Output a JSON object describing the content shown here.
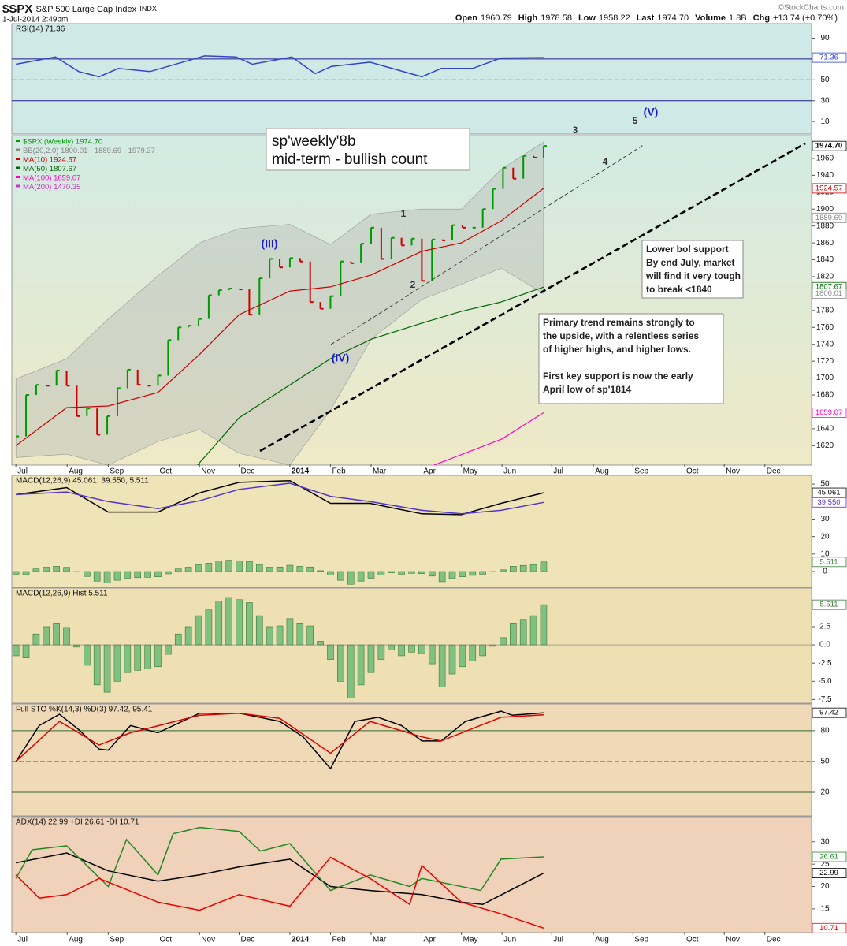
{
  "header": {
    "symbol": "$SPX",
    "name": "S&P 500 Large Cap Index",
    "exchange": "INDX",
    "date": "1-Jul-2014 2:49pm",
    "quote": [
      {
        "label": "Open",
        "value": "1960.79"
      },
      {
        "label": "High",
        "value": "1978.58"
      },
      {
        "label": "Low",
        "value": "1958.22"
      },
      {
        "label": "Last",
        "value": "1974.70"
      },
      {
        "label": "Volume",
        "value": "1.8B"
      },
      {
        "label": "Chg",
        "value": "+13.74 (+0.70%)"
      }
    ],
    "copyright": "©StockCharts.com"
  },
  "chart_data": {
    "type": "multi",
    "xlim": [
      -0.4,
      78.4
    ],
    "xticks": [
      {
        "value": 0,
        "label": "Jul"
      },
      {
        "value": 5.05,
        "label": "Aug"
      },
      {
        "value": 9.1,
        "label": "Sep"
      },
      {
        "value": 14,
        "label": "Oct"
      },
      {
        "value": 18.1,
        "label": "Nov"
      },
      {
        "value": 22,
        "label": "Dec"
      },
      {
        "value": 27,
        "label": "2014"
      },
      {
        "value": 31,
        "label": "Feb"
      },
      {
        "value": 35,
        "label": "Mar"
      },
      {
        "value": 40,
        "label": "Apr"
      },
      {
        "value": 43.9,
        "label": "May"
      },
      {
        "value": 47.9,
        "label": "Jun"
      },
      {
        "value": 52.8,
        "label": "Jul"
      },
      {
        "value": 56.9,
        "label": "Aug"
      },
      {
        "value": 60.8,
        "label": "Sep"
      },
      {
        "value": 65.9,
        "label": "Oct"
      },
      {
        "value": 69.8,
        "label": "Nov"
      },
      {
        "value": 73.8,
        "label": "Dec"
      }
    ],
    "panels": [
      {
        "type": "line",
        "title": "RSI(14) 71.36",
        "ylim": [
          -2,
          104
        ],
        "yticks": [
          90,
          70,
          50,
          30,
          10
        ],
        "levels": [
          70,
          50,
          30
        ],
        "level_color": "#1a1a8c",
        "series": [
          {
            "color": "#3344cc",
            "x": [
              0,
              3.9,
              6.2,
              8.2,
              10.1,
              13.2,
              18.6,
              21.7,
              23.3,
              27.2,
              29.5,
              31.1,
              34.9,
              40,
              41.9,
              45,
              47.8,
              52
            ],
            "values": [
              65,
              72,
              58,
              53,
              61,
              58,
              73,
              72,
              65,
              72,
              56,
              63,
              67,
              53,
              61,
              61,
              71,
              71.36
            ]
          }
        ],
        "tags": [
          {
            "value": 71.36,
            "color": "#3344cc"
          }
        ]
      },
      {
        "type": "price",
        "ylim": [
          1597,
          1987
        ],
        "yticks": [
          1960,
          1940,
          1920,
          1900,
          1880,
          1860,
          1840,
          1820,
          1800,
          1780,
          1760,
          1740,
          1720,
          1700,
          1680,
          1660,
          1640,
          1620
        ],
        "band": {
          "name": "BB(20,2.0) 1800.01 - 1889.69 - 1979.37",
          "color": "#b8bcb8",
          "x": [
            0,
            5,
            9.1,
            14,
            18.1,
            22,
            27,
            31,
            35,
            40,
            43.9,
            47.8,
            52
          ],
          "upper": [
            1699,
            1723,
            1770,
            1821,
            1860,
            1877,
            1882,
            1858,
            1894,
            1900,
            1900,
            1947,
            1979.37
          ],
          "lower": [
            1606,
            1610,
            1597,
            1625,
            1639,
            1611,
            1597,
            1662,
            1746,
            1793,
            1811,
            1830,
            1800.01
          ]
        },
        "series": [
          {
            "name": "$SPX (Weekly) 1974.70",
            "color": "#009900",
            "x": [
              0,
              1,
              2,
              3,
              4,
              5,
              6,
              7,
              8,
              9,
              10,
              11,
              12,
              13,
              14,
              15,
              16,
              17,
              18,
              19,
              20,
              21,
              22,
              23,
              24,
              25,
              26,
              27,
              28,
              29,
              30,
              31,
              32,
              33,
              34,
              35,
              36,
              37,
              38,
              39,
              40,
              41,
              42,
              43,
              44,
              45,
              46,
              47,
              48,
              49,
              50,
              51,
              52
            ],
            "values": [
              1631,
              1680,
              1692,
              1691,
              1709,
              1691,
              1655,
              1664,
              1633,
              1655,
              1688,
              1710,
              1692,
              1691,
              1703,
              1745,
              1760,
              1762,
              1770,
              1798,
              1804,
              1806,
              1805,
              1775,
              1818,
              1841,
              1831,
              1842,
              1838,
              1790,
              1782,
              1797,
              1838,
              1836,
              1859,
              1878,
              1841,
              1866,
              1857,
              1865,
              1815,
              1864,
              1863,
              1881,
              1878,
              1878,
              1900,
              1924,
              1949,
              1936,
              1963,
              1961,
              1974.7
            ]
          },
          {
            "name": "MA(10) 1924.57",
            "color": "#cc0000",
            "x": [
              0,
              5,
              9.1,
              14,
              18.1,
              22,
              27,
              31,
              35,
              40,
              43.9,
              47.8,
              52
            ],
            "values": [
              1620,
              1665,
              1667,
              1683,
              1728,
              1775,
              1803,
              1808,
              1822,
              1850,
              1860,
              1886,
              1924.57
            ]
          },
          {
            "name": "MA(50) 1807.67",
            "color": "#006600",
            "x": [
              17.9,
              22,
              27,
              31,
              35,
              40,
              43.9,
              47.8,
              52
            ],
            "values": [
              1597,
              1653,
              1692,
              1723,
              1746,
              1765,
              1779,
              1790,
              1807.67
            ]
          },
          {
            "name": "MA(100) 1659.07",
            "color": "#ff00cc",
            "x": [
              41.2,
              47.9,
              52
            ],
            "values": [
              1597,
              1628,
              1659.07
            ]
          },
          {
            "name": "MA(200) 1470.35",
            "color": "#cc33cc"
          }
        ],
        "tags": [
          {
            "value": 1974.7,
            "label": "1974.70",
            "color": "#000000"
          },
          {
            "value": 1924.57,
            "color": "#cc0000"
          },
          {
            "value": 1889.69,
            "color": "#888888"
          },
          {
            "value": 1807.67,
            "color": "#006600"
          },
          {
            "value": 1800.01,
            "color": "#888888"
          },
          {
            "value": 1659.07,
            "color": "#ff00cc"
          }
        ],
        "annotations": [
          "(III)",
          "(IV)",
          "(V)",
          "1",
          "2",
          "3",
          "4",
          "5"
        ],
        "title_box": [
          "sp'weekly'8b",
          "mid-term - bullish count"
        ],
        "notes": [
          [
            "Lower bol support",
            "By end July, market",
            "will find it very tough",
            "to break <1840"
          ],
          [
            "Primary trend remains strongly to",
            "the upside, with a relentless series",
            "of higher highs, and higher lows.",
            "",
            "First key support is now the early",
            "April low of sp'1814"
          ]
        ]
      },
      {
        "type": "line",
        "title": "MACD(12,26,9) 45.061, 39.550, 5.511",
        "ylim": [
          -9,
          55
        ],
        "yticks": [
          50,
          40,
          30,
          20,
          10,
          0
        ],
        "hist_from": 3,
        "series": [
          {
            "color": "#000000",
            "x": [
              0,
              5,
              9.1,
              14,
              18.1,
              22,
              27,
              31,
              34.9,
              40,
              43.9,
              47.8,
              52
            ],
            "values": [
              44,
              48,
              34,
              34,
              45,
              51,
              52,
              39,
              39,
              33,
              32.5,
              39,
              45.061
            ]
          },
          {
            "color": "#5533cc",
            "x": [
              0,
              5,
              9.1,
              14,
              18.1,
              22,
              27,
              31,
              34.9,
              40,
              43.9,
              47.8,
              52
            ],
            "values": [
              44,
              45.5,
              40,
              36,
              40.5,
              47,
              50.5,
              43,
              40,
              35,
              33,
              35,
              39.55
            ]
          }
        ],
        "tags": [
          {
            "value": 45.061,
            "color": "#000000"
          },
          {
            "value": 39.55,
            "label": "39.550",
            "color": "#5533cc"
          },
          {
            "value": 5.511,
            "color": "#3a7a3a"
          }
        ]
      },
      {
        "type": "hist",
        "title": "MACD(12,26,9) Hist 5.511",
        "ylim": [
          -8,
          7.8
        ],
        "yticks": [
          2.5,
          {
            "value": 0,
            "label": "0.0"
          },
          -2.5,
          {
            "value": -5,
            "label": "-5.0"
          },
          -7.5
        ],
        "color": "#80c080",
        "values": [
          -1.5,
          -1.8,
          1.5,
          2.5,
          3.0,
          2.4,
          -0.3,
          -2.8,
          -5.5,
          -6.5,
          -5.0,
          -3.8,
          -3.5,
          -3.3,
          -3.0,
          -1.3,
          1.5,
          2.5,
          4.0,
          4.8,
          6.0,
          6.5,
          6.2,
          5.8,
          4.0,
          2.5,
          2.6,
          3.6,
          3.0,
          2.6,
          0.5,
          -2.0,
          -5.0,
          -7.3,
          -5.5,
          -3.8,
          -2.0,
          -0.7,
          -1.5,
          -1.0,
          -1.2,
          -2.6,
          -5.8,
          -4.0,
          -3.0,
          -2.2,
          -1.5,
          -0.2,
          1.0,
          3.0,
          3.5,
          4.0,
          5.511
        ],
        "x": [
          0,
          1,
          2,
          3,
          4,
          5,
          6,
          7,
          8,
          9,
          10,
          11,
          12,
          13,
          14,
          15,
          16,
          17,
          18,
          19,
          20,
          21,
          22,
          23,
          24,
          25,
          26,
          27,
          28,
          29,
          30,
          31,
          32,
          33,
          34,
          35,
          36,
          37,
          38,
          39,
          40,
          41,
          42,
          43,
          44,
          45,
          46,
          47,
          48,
          49,
          50,
          51,
          52
        ],
        "tags": [
          {
            "value": 5.511,
            "color": "#3a7a3a"
          }
        ]
      },
      {
        "type": "line",
        "title": "Full STO %K(14,3) %D(3) 97.42, 95.41",
        "ylim": [
          -3,
          106
        ],
        "yticks": [
          80,
          50,
          20
        ],
        "levels": [
          80,
          50,
          20
        ],
        "level_color": "#2e6b2e",
        "series": [
          {
            "color": "#000000",
            "x": [
              0,
              2.3,
              4.3,
              6.2,
              8.2,
              9.1,
              11.3,
              14,
              18.1,
              22,
              26,
              28.3,
              31,
              33.4,
              35.7,
              38,
              40,
              41.9,
              44.3,
              47.8,
              48.9,
              52
            ],
            "values": [
              50,
              85,
              96,
              81,
              62,
              61,
              85,
              78,
              97,
              97,
              89,
              74,
              43,
              89,
              93,
              85,
              70,
              70,
              89,
              99,
              95,
              97.42
            ]
          },
          {
            "color": "#dd0000",
            "x": [
              0,
              4.3,
              8.2,
              11.3,
              18.1,
              22,
              26,
              31,
              34.9,
              40,
              41.9,
              47.8,
              52
            ],
            "values": [
              50,
              89,
              66,
              78,
              95,
              97,
              92,
              58,
              89,
              74,
              70,
              93,
              95.41
            ]
          }
        ],
        "tags": [
          {
            "value": 97.42,
            "color": "#000000"
          }
        ]
      },
      {
        "type": "line",
        "title": "ADX(14) 22.99 +DI 26.61 -DI 10.71",
        "ylim": [
          9.7,
          35.6
        ],
        "yticks": [
          30,
          25,
          20,
          15
        ],
        "series": [
          {
            "color": "#000000",
            "x": [
              0,
              5,
              9.1,
              14,
              18.1,
              22,
              27,
              31,
              34.9,
              40,
              43.9,
              46,
              52
            ],
            "values": [
              25.3,
              27.5,
              23.5,
              21.2,
              22.6,
              24.4,
              26.1,
              20,
              19.1,
              18.2,
              16.5,
              16,
              22.99
            ]
          },
          {
            "color": "#228822",
            "x": [
              0,
              1.6,
              5,
              9.1,
              10.9,
              14,
              15.5,
              18.1,
              22,
              24.1,
              27,
              31,
              34.9,
              38.8,
              40,
              45.8,
              47.8,
              52
            ],
            "values": [
              21.8,
              28.2,
              29.1,
              20,
              30.5,
              22.6,
              31.8,
              33.2,
              32.3,
              27.9,
              29.6,
              19.1,
              22.6,
              20,
              21.8,
              19.1,
              26.1,
              26.61
            ]
          },
          {
            "color": "#ee0000",
            "x": [
              0,
              2.3,
              5,
              8.2,
              14,
              18.1,
              22,
              27,
              31,
              34.9,
              38.8,
              40,
              43.9,
              47.8,
              52
            ],
            "values": [
              22.6,
              17.4,
              18.2,
              21.8,
              16.5,
              14.7,
              18.2,
              15.6,
              26.5,
              21.8,
              16,
              24.7,
              16.5,
              13.9,
              10.71
            ]
          }
        ],
        "tags": [
          {
            "value": 26.61,
            "color": "#228822"
          },
          {
            "value": 22.99,
            "color": "#000000"
          },
          {
            "value": 10.71,
            "color": "#ee0000"
          }
        ],
        "xaxis": true
      }
    ]
  }
}
